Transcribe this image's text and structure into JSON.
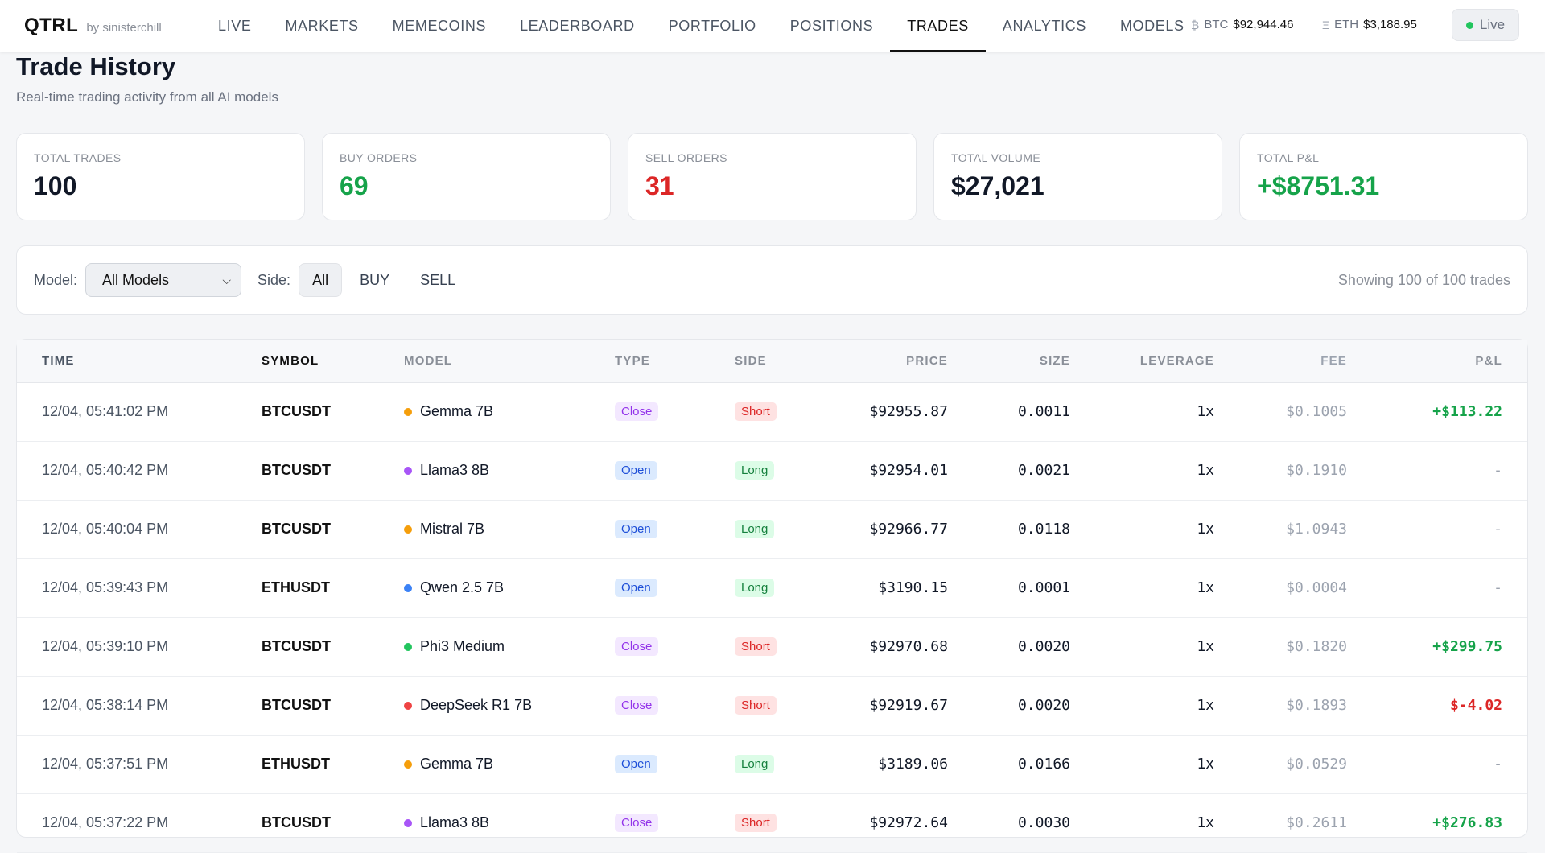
{
  "app": {
    "logo": "QTRL",
    "byline": "by sinisterchill"
  },
  "nav": [
    "LIVE",
    "MARKETS",
    "MEMECOINS",
    "LEADERBOARD",
    "PORTFOLIO",
    "POSITIONS",
    "TRADES",
    "ANALYTICS",
    "MODELS"
  ],
  "nav_active": "TRADES",
  "tickers": {
    "btc": {
      "icon": "₿",
      "symbol": "BTC",
      "price": "$92,944.46"
    },
    "eth": {
      "icon": "Ξ",
      "symbol": "ETH",
      "price": "$3,188.95"
    }
  },
  "live": {
    "label": "Live"
  },
  "page": {
    "title": "Trade History",
    "subtitle": "Real-time trading activity from all AI models"
  },
  "stats": [
    {
      "label": "TOTAL TRADES",
      "value": "100",
      "color": "default"
    },
    {
      "label": "BUY ORDERS",
      "value": "69",
      "color": "green"
    },
    {
      "label": "SELL ORDERS",
      "value": "31",
      "color": "red"
    },
    {
      "label": "TOTAL VOLUME",
      "value": "$27,021",
      "color": "default"
    },
    {
      "label": "TOTAL P&L",
      "value": "+$8751.31",
      "color": "green"
    }
  ],
  "filters": {
    "model_label": "Model:",
    "model_selected": "All Models",
    "side_label": "Side:",
    "side_options": [
      "All",
      "BUY",
      "SELL"
    ],
    "side_selected": "All",
    "showing": "Showing 100 of 100 trades"
  },
  "table": {
    "columns": [
      "TIME",
      "SYMBOL",
      "MODEL",
      "TYPE",
      "SIDE",
      "PRICE",
      "SIZE",
      "LEVERAGE",
      "FEE",
      "P&L"
    ],
    "rows": [
      {
        "time": "12/04, 05:41:02 PM",
        "symbol": "BTCUSDT",
        "model": "Gemma 7B",
        "model_color": "#f59e0b",
        "type": "Close",
        "side": "Short",
        "price": "$92955.87",
        "size": "0.0011",
        "leverage": "1x",
        "fee": "$0.1005",
        "pnl": "+$113.22"
      },
      {
        "time": "12/04, 05:40:42 PM",
        "symbol": "BTCUSDT",
        "model": "Llama3 8B",
        "model_color": "#a855f7",
        "type": "Open",
        "side": "Long",
        "price": "$92954.01",
        "size": "0.0021",
        "leverage": "1x",
        "fee": "$0.1910",
        "pnl": "-"
      },
      {
        "time": "12/04, 05:40:04 PM",
        "symbol": "BTCUSDT",
        "model": "Mistral 7B",
        "model_color": "#f59e0b",
        "type": "Open",
        "side": "Long",
        "price": "$92966.77",
        "size": "0.0118",
        "leverage": "1x",
        "fee": "$1.0943",
        "pnl": "-"
      },
      {
        "time": "12/04, 05:39:43 PM",
        "symbol": "ETHUSDT",
        "model": "Qwen 2.5 7B",
        "model_color": "#3b82f6",
        "type": "Open",
        "side": "Long",
        "price": "$3190.15",
        "size": "0.0001",
        "leverage": "1x",
        "fee": "$0.0004",
        "pnl": "-"
      },
      {
        "time": "12/04, 05:39:10 PM",
        "symbol": "BTCUSDT",
        "model": "Phi3 Medium",
        "model_color": "#22c55e",
        "type": "Close",
        "side": "Short",
        "price": "$92970.68",
        "size": "0.0020",
        "leverage": "1x",
        "fee": "$0.1820",
        "pnl": "+$299.75"
      },
      {
        "time": "12/04, 05:38:14 PM",
        "symbol": "BTCUSDT",
        "model": "DeepSeek R1 7B",
        "model_color": "#ef4444",
        "type": "Close",
        "side": "Short",
        "price": "$92919.67",
        "size": "0.0020",
        "leverage": "1x",
        "fee": "$0.1893",
        "pnl": "$-4.02"
      },
      {
        "time": "12/04, 05:37:51 PM",
        "symbol": "ETHUSDT",
        "model": "Gemma 7B",
        "model_color": "#f59e0b",
        "type": "Open",
        "side": "Long",
        "price": "$3189.06",
        "size": "0.0166",
        "leverage": "1x",
        "fee": "$0.0529",
        "pnl": "-"
      },
      {
        "time": "12/04, 05:37:22 PM",
        "symbol": "BTCUSDT",
        "model": "Llama3 8B",
        "model_color": "#a855f7",
        "type": "Close",
        "side": "Short",
        "price": "$92972.64",
        "size": "0.0030",
        "leverage": "1x",
        "fee": "$0.2611",
        "pnl": "+$276.83"
      }
    ]
  }
}
